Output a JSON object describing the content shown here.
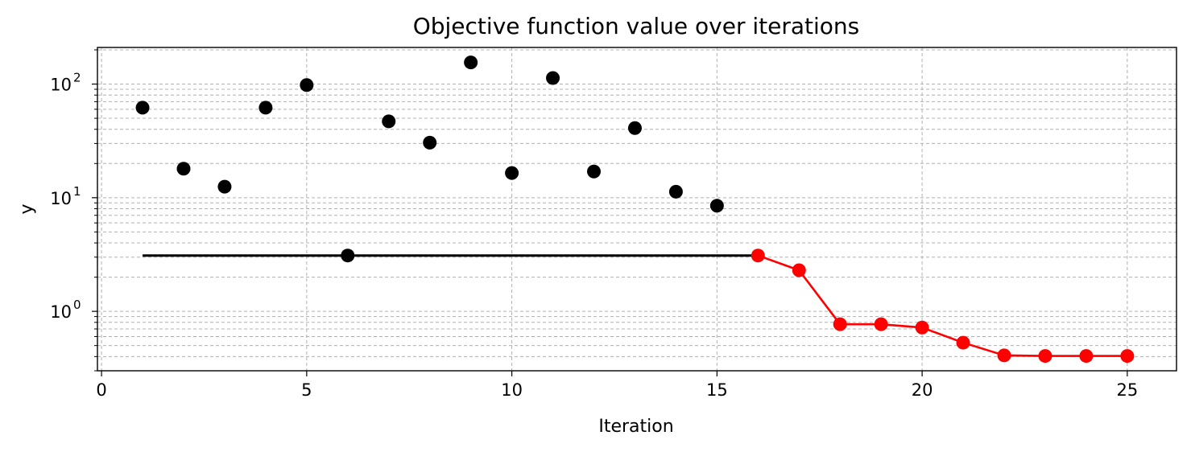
{
  "chart_data": {
    "type": "scatter",
    "title": "Objective function value over iterations",
    "xlabel": "Iteration",
    "ylabel": "y",
    "yscale": "log",
    "xlim": [
      -0.1,
      26.2
    ],
    "ylim": [
      0.3,
      210
    ],
    "xticks": [
      0,
      5,
      10,
      15,
      20,
      25
    ],
    "yticks": [
      {
        "value": 1,
        "base": "10",
        "exp": "0"
      },
      {
        "value": 10,
        "base": "10",
        "exp": "1"
      },
      {
        "value": 100,
        "base": "10",
        "exp": "2"
      }
    ],
    "grid": true,
    "colors": {
      "explore": "#000000",
      "optimize": "#ff0000",
      "best_line": "#000000"
    },
    "series": [
      {
        "role": "explore-points",
        "x": [
          1,
          2,
          3,
          4,
          5,
          6,
          7,
          8,
          9,
          10,
          11,
          12,
          13,
          14,
          15
        ],
        "y": [
          62,
          18,
          12.5,
          62,
          98,
          3.1,
          47,
          30.5,
          155,
          16.5,
          113,
          17,
          41,
          11.3,
          8.5
        ]
      },
      {
        "role": "best-so-far-line",
        "x": [
          1,
          16
        ],
        "y": [
          3.1,
          3.1
        ]
      },
      {
        "role": "optimize-line",
        "x": [
          16,
          17,
          18,
          19,
          20,
          21,
          22,
          23,
          24,
          25
        ],
        "y": [
          3.1,
          2.3,
          0.77,
          0.77,
          0.72,
          0.53,
          0.41,
          0.405,
          0.405,
          0.405
        ]
      }
    ]
  }
}
